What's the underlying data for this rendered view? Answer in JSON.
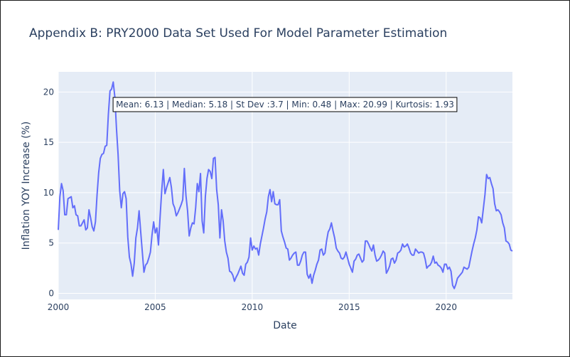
{
  "colors": {
    "plot_bg": "#e5ecf6",
    "grid": "#ffffff",
    "line": "#636efa",
    "text": "#2a3f5f"
  },
  "chart_data": {
    "type": "line",
    "title": "Appendix B: PRY2000 Data Set Used For Model Parameter Estimation",
    "xlabel": "Date",
    "ylabel": "Inflation YOY Increase (%)",
    "xlim": [
      "2000-01",
      "2023-06"
    ],
    "ylim": [
      -0.6,
      22
    ],
    "grid": true,
    "x_ticks": [
      2000,
      2005,
      2010,
      2015,
      2020
    ],
    "y_ticks": [
      0,
      5,
      10,
      15,
      20
    ],
    "annotation": "Mean: 6.13 | Median: 5.18 | St Dev :3.7 | Min: 0.48 | Max: 20.99 | Kurtosis: 1.93",
    "series": [
      {
        "x": [
          "2000-01",
          "2000-02",
          "2000-03",
          "2000-04",
          "2000-05",
          "2000-06",
          "2000-07",
          "2000-08",
          "2000-09",
          "2000-10",
          "2000-11",
          "2000-12",
          "2001-01",
          "2001-02",
          "2001-03",
          "2001-04",
          "2001-05",
          "2001-06",
          "2001-07",
          "2001-08",
          "2001-09",
          "2001-10",
          "2001-11",
          "2001-12",
          "2002-01",
          "2002-02",
          "2002-03",
          "2002-04",
          "2002-05",
          "2002-06",
          "2002-07",
          "2002-08",
          "2002-09",
          "2002-10",
          "2002-11",
          "2002-12",
          "2003-01",
          "2003-02",
          "2003-03",
          "2003-04",
          "2003-05",
          "2003-06",
          "2003-07",
          "2003-08",
          "2003-09",
          "2003-10",
          "2003-11",
          "2003-12",
          "2004-01",
          "2004-02",
          "2004-03",
          "2004-04",
          "2004-05",
          "2004-06",
          "2004-07",
          "2004-08",
          "2004-09",
          "2004-10",
          "2004-11",
          "2004-12",
          "2005-01",
          "2005-02",
          "2005-03",
          "2005-04",
          "2005-05",
          "2005-06",
          "2005-07",
          "2005-08",
          "2005-09",
          "2005-10",
          "2005-11",
          "2005-12",
          "2006-01",
          "2006-02",
          "2006-03",
          "2006-04",
          "2006-05",
          "2006-06",
          "2006-07",
          "2006-08",
          "2006-09",
          "2006-10",
          "2006-11",
          "2006-12",
          "2007-01",
          "2007-02",
          "2007-03",
          "2007-04",
          "2007-05",
          "2007-06",
          "2007-07",
          "2007-08",
          "2007-09",
          "2007-10",
          "2007-11",
          "2007-12",
          "2008-01",
          "2008-02",
          "2008-03",
          "2008-04",
          "2008-05",
          "2008-06",
          "2008-07",
          "2008-08",
          "2008-09",
          "2008-10",
          "2008-11",
          "2008-12",
          "2009-01",
          "2009-02",
          "2009-03",
          "2009-04",
          "2009-05",
          "2009-06",
          "2009-07",
          "2009-08",
          "2009-09",
          "2009-10",
          "2009-11",
          "2009-12",
          "2010-01",
          "2010-02",
          "2010-03",
          "2010-04",
          "2010-05",
          "2010-06",
          "2010-07",
          "2010-08",
          "2010-09",
          "2010-10",
          "2010-11",
          "2010-12",
          "2011-01",
          "2011-02",
          "2011-03",
          "2011-04",
          "2011-05",
          "2011-06",
          "2011-07",
          "2011-08",
          "2011-09",
          "2011-10",
          "2011-11",
          "2011-12",
          "2012-01",
          "2012-02",
          "2012-03",
          "2012-04",
          "2012-05",
          "2012-06",
          "2012-07",
          "2012-08",
          "2012-09",
          "2012-10",
          "2012-11",
          "2012-12",
          "2013-01",
          "2013-02",
          "2013-03",
          "2013-04",
          "2013-05",
          "2013-06",
          "2013-07",
          "2013-08",
          "2013-09",
          "2013-10",
          "2013-11",
          "2013-12",
          "2014-01",
          "2014-02",
          "2014-03",
          "2014-04",
          "2014-05",
          "2014-06",
          "2014-07",
          "2014-08",
          "2014-09",
          "2014-10",
          "2014-11",
          "2014-12",
          "2015-01",
          "2015-02",
          "2015-03",
          "2015-04",
          "2015-05",
          "2015-06",
          "2015-07",
          "2015-08",
          "2015-09",
          "2015-10",
          "2015-11",
          "2015-12",
          "2016-01",
          "2016-02",
          "2016-03",
          "2016-04",
          "2016-05",
          "2016-06",
          "2016-07",
          "2016-08",
          "2016-09",
          "2016-10",
          "2016-11",
          "2016-12",
          "2017-01",
          "2017-02",
          "2017-03",
          "2017-04",
          "2017-05",
          "2017-06",
          "2017-07",
          "2017-08",
          "2017-09",
          "2017-10",
          "2017-11",
          "2017-12",
          "2018-01",
          "2018-02",
          "2018-03",
          "2018-04",
          "2018-05",
          "2018-06",
          "2018-07",
          "2018-08",
          "2018-09",
          "2018-10",
          "2018-11",
          "2018-12",
          "2019-01",
          "2019-02",
          "2019-03",
          "2019-04",
          "2019-05",
          "2019-06",
          "2019-07",
          "2019-08",
          "2019-09",
          "2019-10",
          "2019-11",
          "2019-12",
          "2020-01",
          "2020-02",
          "2020-03",
          "2020-04",
          "2020-05",
          "2020-06",
          "2020-07",
          "2020-08",
          "2020-09",
          "2020-10",
          "2020-11",
          "2020-12",
          "2021-01",
          "2021-02",
          "2021-03",
          "2021-04",
          "2021-05",
          "2021-06",
          "2021-07",
          "2021-08",
          "2021-09",
          "2021-10",
          "2021-11",
          "2021-12",
          "2022-01",
          "2022-02",
          "2022-03",
          "2022-04",
          "2022-05",
          "2022-06",
          "2022-07",
          "2022-08",
          "2022-09",
          "2022-10",
          "2022-11",
          "2022-12",
          "2023-01",
          "2023-02",
          "2023-03",
          "2023-04",
          "2023-05",
          "2023-06"
        ],
        "y": [
          6.3,
          9.6,
          10.9,
          10.2,
          7.8,
          7.8,
          9.4,
          9.5,
          9.6,
          8.5,
          8.7,
          7.8,
          7.7,
          6.7,
          6.7,
          7.0,
          7.3,
          6.3,
          6.5,
          8.3,
          7.5,
          6.6,
          6.2,
          7.1,
          9.8,
          12.0,
          13.4,
          13.8,
          13.9,
          14.6,
          14.7,
          17.8,
          20.1,
          20.3,
          20.99,
          19.5,
          16.4,
          13.8,
          10.2,
          8.5,
          9.9,
          10.1,
          9.4,
          5.6,
          3.6,
          2.9,
          1.7,
          3.0,
          5.5,
          6.5,
          8.2,
          6.1,
          4.1,
          2.1,
          2.8,
          3.0,
          3.5,
          4.1,
          5.8,
          7.1,
          6.0,
          6.5,
          4.8,
          7.6,
          10.2,
          12.3,
          9.9,
          10.5,
          11.0,
          11.5,
          10.5,
          8.9,
          8.5,
          7.7,
          8.0,
          8.4,
          8.8,
          9.3,
          12.4,
          9.7,
          8.2,
          5.7,
          6.5,
          7.0,
          6.9,
          8.5,
          10.9,
          10.1,
          11.9,
          7.2,
          6.0,
          9.6,
          11.4,
          12.3,
          12.1,
          11.4,
          13.4,
          13.5,
          10.3,
          8.8,
          5.5,
          8.3,
          7.2,
          5.2,
          4.1,
          3.5,
          2.2,
          2.1,
          1.8,
          1.2,
          1.6,
          1.9,
          2.3,
          2.7,
          2.0,
          1.8,
          2.9,
          3.1,
          3.6,
          5.5,
          4.3,
          4.7,
          4.4,
          4.5,
          3.8,
          4.9,
          5.7,
          6.5,
          7.4,
          8.1,
          9.6,
          10.3,
          9.1,
          10.1,
          8.9,
          8.8,
          8.8,
          9.3,
          6.2,
          5.6,
          5.1,
          4.5,
          4.4,
          3.3,
          3.5,
          3.8,
          4.0,
          4.1,
          2.8,
          2.8,
          3.2,
          3.8,
          4.1,
          4.1,
          1.9,
          1.5,
          1.9,
          1.0,
          1.8,
          2.3,
          2.9,
          3.3,
          4.3,
          4.4,
          3.8,
          4.0,
          5.2,
          6.1,
          6.4,
          7.0,
          6.2,
          5.5,
          4.5,
          4.2,
          4.0,
          3.5,
          3.4,
          3.6,
          4.1,
          3.5,
          2.9,
          2.5,
          2.1,
          3.2,
          3.4,
          3.8,
          3.9,
          3.5,
          3.1,
          3.3,
          5.2,
          5.2,
          4.9,
          4.5,
          4.2,
          4.8,
          3.8,
          3.2,
          3.3,
          3.5,
          3.8,
          4.2,
          4.0,
          2.0,
          2.3,
          2.7,
          3.4,
          3.5,
          3.0,
          3.3,
          4.0,
          4.1,
          4.3,
          4.9,
          4.6,
          4.7,
          4.9,
          4.5,
          4.0,
          3.8,
          3.8,
          4.4,
          4.2,
          4.0,
          4.1,
          4.1,
          4.0,
          3.4,
          2.5,
          2.7,
          2.8,
          3.1,
          3.7,
          3.0,
          3.1,
          2.8,
          2.7,
          2.5,
          2.1,
          2.9,
          2.9,
          2.4,
          2.6,
          2.2,
          0.8,
          0.48,
          0.9,
          1.5,
          1.7,
          1.9,
          2.1,
          2.6,
          2.5,
          2.4,
          2.6,
          3.4,
          4.2,
          4.9,
          5.5,
          6.3,
          7.6,
          7.5,
          7.0,
          8.4,
          9.8,
          11.8,
          11.4,
          11.5,
          10.9,
          10.4,
          8.9,
          8.2,
          8.3,
          8.1,
          7.8,
          7.0,
          6.5,
          5.2,
          5.1,
          4.9,
          4.3,
          4.2
        ]
      }
    ]
  }
}
